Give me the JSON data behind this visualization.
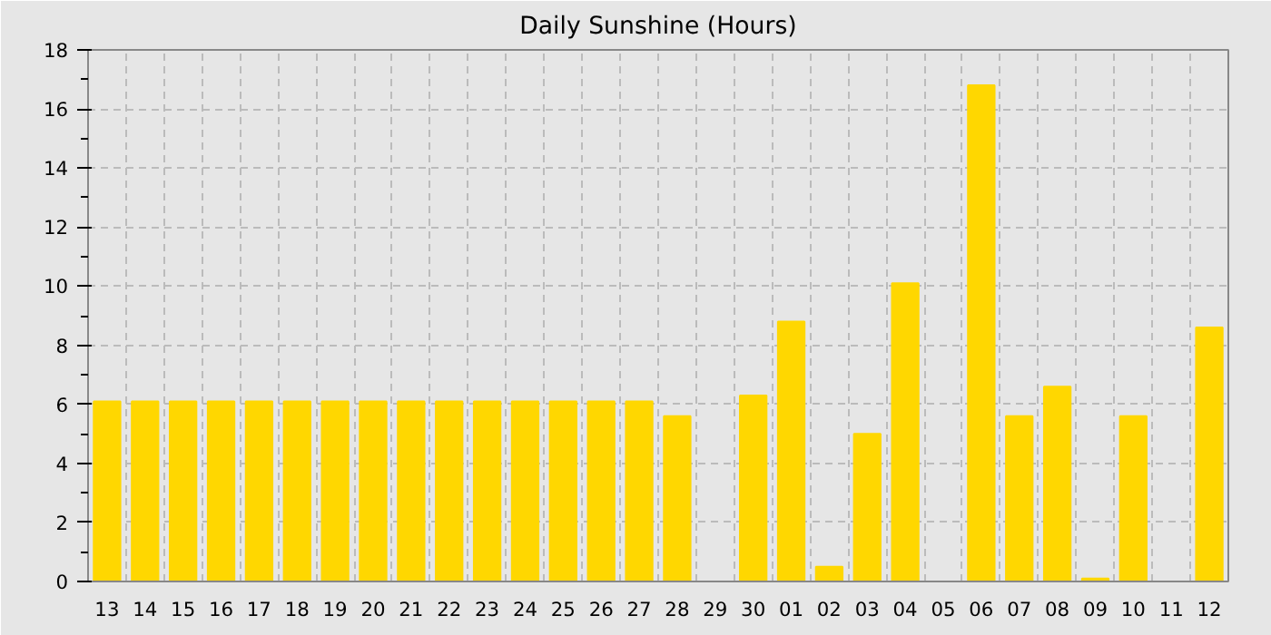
{
  "chart_data": {
    "type": "bar",
    "title": "Daily Sunshine (Hours)",
    "categories": [
      "13",
      "14",
      "15",
      "16",
      "17",
      "18",
      "19",
      "20",
      "21",
      "22",
      "23",
      "24",
      "25",
      "26",
      "27",
      "28",
      "29",
      "30",
      "01",
      "02",
      "03",
      "04",
      "05",
      "06",
      "07",
      "08",
      "09",
      "10",
      "11",
      "12"
    ],
    "values": [
      6.1,
      6.1,
      6.1,
      6.1,
      6.1,
      6.1,
      6.1,
      6.1,
      6.1,
      6.1,
      6.1,
      6.1,
      6.1,
      6.1,
      6.1,
      5.6,
      0,
      6.3,
      8.8,
      0.5,
      5.0,
      10.1,
      0,
      16.8,
      5.6,
      6.6,
      0.1,
      5.6,
      0,
      8.6
    ],
    "color": "#ffd700",
    "ylim": [
      0,
      18
    ],
    "yticks": [
      0,
      2,
      4,
      6,
      8,
      10,
      12,
      14,
      16,
      18
    ],
    "grid": true
  }
}
